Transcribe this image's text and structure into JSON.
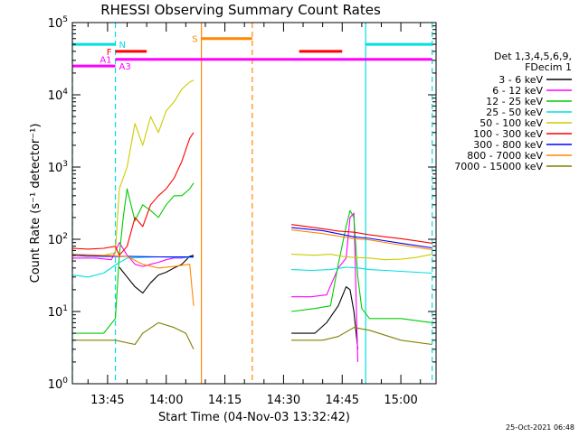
{
  "chart_data": {
    "type": "line",
    "title": "RHESSI Observing Summary Count Rates",
    "xlabel": "Start Time (04-Nov-03 13:32:42)",
    "ylabel": "Count Rate (s⁻¹ detector⁻¹)",
    "y_scale": "log",
    "ylim": [
      1,
      100000
    ],
    "xlim": [
      "13:36",
      "15:09"
    ],
    "grid": false,
    "legend_position": "right",
    "x_ticks": [
      "13:45",
      "14:00",
      "14:15",
      "14:30",
      "14:45",
      "15:00"
    ],
    "y_ticks": [
      {
        "base": "10",
        "exp": "0",
        "value": 1
      },
      {
        "base": "10",
        "exp": "1",
        "value": 10
      },
      {
        "base": "10",
        "exp": "2",
        "value": 100
      },
      {
        "base": "10",
        "exp": "3",
        "value": 1000
      },
      {
        "base": "10",
        "exp": "4",
        "value": 10000
      },
      {
        "base": "10",
        "exp": "5",
        "value": 100000
      }
    ],
    "legend_header": [
      "Det 1,3,4,5,6,9,",
      "FDecim 1"
    ],
    "series": [
      {
        "name": "3 - 6 keV",
        "color": "#000000",
        "points": [
          [
            "13:48",
            41
          ],
          [
            "13:50",
            30
          ],
          [
            "13:52",
            22
          ],
          [
            "13:54",
            18
          ],
          [
            "13:56",
            25
          ],
          [
            "13:58",
            32
          ],
          [
            "14:00",
            35
          ],
          [
            "14:02",
            40
          ],
          [
            "14:04",
            45
          ],
          [
            "14:06",
            58
          ],
          [
            "14:07",
            60
          ],
          null,
          [
            "14:32",
            5
          ],
          [
            "14:35",
            5
          ],
          [
            "14:38",
            5
          ],
          [
            "14:41",
            7
          ],
          [
            "14:44",
            12
          ],
          [
            "14:46",
            22
          ],
          [
            "14:47",
            20
          ],
          [
            "14:48",
            10
          ],
          [
            "14:49",
            3
          ]
        ]
      },
      {
        "name": "6 - 12 keV",
        "color": "#ff00ff",
        "points": [
          [
            "13:36",
            55
          ],
          [
            "13:42",
            55
          ],
          [
            "13:46",
            52
          ],
          [
            "13:48",
            90
          ],
          [
            "13:50",
            60
          ],
          [
            "13:52",
            45
          ],
          [
            "13:54",
            42
          ],
          [
            "13:56",
            45
          ],
          [
            "13:58",
            48
          ],
          [
            "14:00",
            52
          ],
          [
            "14:02",
            55
          ],
          [
            "14:04",
            55
          ],
          [
            "14:07",
            58
          ],
          null,
          [
            "14:32",
            16
          ],
          [
            "14:37",
            16
          ],
          [
            "14:41",
            17
          ],
          [
            "14:43",
            30
          ],
          [
            "14:44",
            40
          ],
          [
            "14:46",
            55
          ],
          [
            "14:47",
            200
          ],
          [
            "14:48",
            230
          ],
          [
            "14:49",
            2
          ]
        ]
      },
      {
        "name": "12 - 25 keV",
        "color": "#00cc00",
        "points": [
          [
            "13:36",
            5
          ],
          [
            "13:44",
            5
          ],
          [
            "13:47",
            8
          ],
          [
            "13:48",
            60
          ],
          [
            "13:49",
            200
          ],
          [
            "13:50",
            500
          ],
          [
            "13:52",
            180
          ],
          [
            "13:54",
            300
          ],
          [
            "13:56",
            250
          ],
          [
            "13:58",
            200
          ],
          [
            "14:00",
            300
          ],
          [
            "14:02",
            400
          ],
          [
            "14:04",
            400
          ],
          [
            "14:06",
            500
          ],
          [
            "14:07",
            600
          ],
          null,
          [
            "14:32",
            10
          ],
          [
            "14:38",
            11
          ],
          [
            "14:42",
            12
          ],
          [
            "14:44",
            45
          ],
          [
            "14:46",
            150
          ],
          [
            "14:47",
            250
          ],
          [
            "14:48",
            200
          ],
          [
            "14:49",
            30
          ],
          [
            "14:50",
            11
          ],
          [
            "14:52",
            8
          ],
          [
            "15:00",
            8
          ],
          [
            "15:08",
            7
          ]
        ]
      },
      {
        "name": "25 - 50 keV",
        "color": "#00e0e0",
        "points": [
          [
            "13:36",
            32
          ],
          [
            "13:40",
            30
          ],
          [
            "13:44",
            34
          ],
          [
            "13:47",
            44
          ],
          [
            "13:50",
            55
          ],
          [
            "13:54",
            56
          ],
          [
            "13:58",
            57
          ],
          [
            "14:02",
            56
          ],
          [
            "14:07",
            56
          ],
          null,
          [
            "14:32",
            38
          ],
          [
            "14:37",
            37
          ],
          [
            "14:42",
            38
          ],
          [
            "14:46",
            41
          ],
          [
            "14:49",
            40
          ],
          [
            "14:52",
            38
          ],
          [
            "14:56",
            37
          ],
          [
            "15:00",
            36
          ],
          [
            "15:04",
            35
          ],
          [
            "15:08",
            34
          ]
        ]
      },
      {
        "name": "50 - 100 keV",
        "color": "#cccc00",
        "points": [
          [
            "13:36",
            60
          ],
          [
            "13:40",
            58
          ],
          [
            "13:44",
            60
          ],
          [
            "13:47",
            65
          ],
          [
            "13:48",
            500
          ],
          [
            "13:50",
            1000
          ],
          [
            "13:52",
            4000
          ],
          [
            "13:54",
            2000
          ],
          [
            "13:56",
            5000
          ],
          [
            "13:58",
            3000
          ],
          [
            "14:00",
            6000
          ],
          [
            "14:02",
            8000
          ],
          [
            "14:04",
            12000
          ],
          [
            "14:06",
            15000
          ],
          [
            "14:07",
            16000
          ],
          null,
          [
            "14:32",
            62
          ],
          [
            "14:38",
            60
          ],
          [
            "14:42",
            62
          ],
          [
            "14:45",
            58
          ],
          [
            "14:48",
            56
          ],
          [
            "14:52",
            55
          ],
          [
            "14:56",
            52
          ],
          [
            "15:00",
            53
          ],
          [
            "15:04",
            56
          ],
          [
            "15:08",
            62
          ]
        ]
      },
      {
        "name": "100 - 300 keV",
        "color": "#ff0000",
        "points": [
          [
            "13:36",
            75
          ],
          [
            "13:40",
            73
          ],
          [
            "13:44",
            75
          ],
          [
            "13:47",
            80
          ],
          [
            "13:48",
            60
          ],
          [
            "13:50",
            80
          ],
          [
            "13:52",
            200
          ],
          [
            "13:54",
            150
          ],
          [
            "13:56",
            300
          ],
          [
            "13:58",
            400
          ],
          [
            "14:00",
            500
          ],
          [
            "14:02",
            700
          ],
          [
            "14:04",
            1200
          ],
          [
            "14:06",
            2500
          ],
          [
            "14:07",
            3000
          ],
          null,
          [
            "14:32",
            160
          ],
          [
            "14:36",
            150
          ],
          [
            "14:40",
            140
          ],
          [
            "14:44",
            130
          ],
          [
            "14:48",
            125
          ],
          [
            "14:52",
            115
          ],
          [
            "14:56",
            108
          ],
          [
            "15:00",
            102
          ],
          [
            "15:04",
            95
          ],
          [
            "15:08",
            88
          ]
        ]
      },
      {
        "name": "300 - 800 keV",
        "color": "#0000ff",
        "points": [
          [
            "13:36",
            60
          ],
          [
            "13:44",
            58
          ],
          [
            "13:50",
            58
          ],
          [
            "13:58",
            57
          ],
          [
            "14:07",
            57
          ],
          null,
          [
            "14:32",
            145
          ],
          [
            "14:40",
            132
          ],
          [
            "14:48",
            108
          ],
          [
            "14:52",
            103
          ],
          [
            "15:00",
            88
          ],
          [
            "15:08",
            76
          ]
        ]
      },
      {
        "name": "800 - 7000 keV",
        "color": "#ff8800",
        "points": [
          [
            "13:36",
            62
          ],
          [
            "13:44",
            60
          ],
          [
            "13:50",
            58
          ],
          [
            "13:54",
            45
          ],
          [
            "13:58",
            40
          ],
          [
            "14:02",
            42
          ],
          [
            "14:06",
            45
          ],
          [
            "14:07",
            12
          ],
          null,
          [
            "14:32",
            135
          ],
          [
            "14:40",
            120
          ],
          [
            "14:48",
            102
          ],
          [
            "14:52",
            98
          ],
          [
            "15:00",
            83
          ],
          [
            "15:08",
            72
          ]
        ]
      },
      {
        "name": "7000 - 15000 keV",
        "color": "#808000",
        "points": [
          [
            "13:36",
            4
          ],
          [
            "13:44",
            4
          ],
          [
            "13:47",
            4
          ],
          [
            "13:52",
            3.5
          ],
          [
            "13:54",
            5
          ],
          [
            "13:58",
            7
          ],
          [
            "14:02",
            6
          ],
          [
            "14:05",
            5
          ],
          [
            "14:07",
            3
          ],
          null,
          [
            "14:32",
            4
          ],
          [
            "14:40",
            4
          ],
          [
            "14:44",
            4.5
          ],
          [
            "14:48",
            6
          ],
          [
            "14:52",
            5.5
          ],
          [
            "15:00",
            4
          ],
          [
            "15:08",
            3.5
          ]
        ]
      }
    ],
    "state_bars": [
      {
        "label": "N",
        "color": "#00e0e0",
        "y": 50000,
        "segments": [
          [
            "13:36",
            "13:47"
          ],
          [
            "14:51",
            "15:08"
          ]
        ]
      },
      {
        "label": "S",
        "color": "#ff8800",
        "y": 60000,
        "segments": [
          [
            "14:09",
            "14:22"
          ]
        ]
      },
      {
        "label": "F",
        "color": "#ff0000",
        "y": 40000,
        "segments": [
          [
            "13:47",
            "13:55"
          ],
          [
            "14:34",
            "14:45"
          ]
        ]
      },
      {
        "label": "A1",
        "color": "#ff00ff",
        "y": 31000,
        "segments": [
          [
            "13:47",
            "15:08"
          ]
        ]
      },
      {
        "label": "A3",
        "color": "#ff00ff",
        "y": 25000,
        "segments": [
          [
            "13:36",
            "13:47"
          ]
        ]
      }
    ],
    "vlines": [
      {
        "t": "13:36",
        "color": "#00e0e0",
        "style": "dashed"
      },
      {
        "t": "13:47",
        "color": "#00e0e0",
        "style": "dashed"
      },
      {
        "t": "14:09",
        "color": "#ff8800",
        "style": "solid"
      },
      {
        "t": "14:22",
        "color": "#ff8800",
        "style": "dashed"
      },
      {
        "t": "14:51",
        "color": "#00e0e0",
        "style": "solid"
      },
      {
        "t": "15:08",
        "color": "#00e0e0",
        "style": "dashed"
      }
    ],
    "footer_stamp": "25-Oct-2021 06:48"
  }
}
